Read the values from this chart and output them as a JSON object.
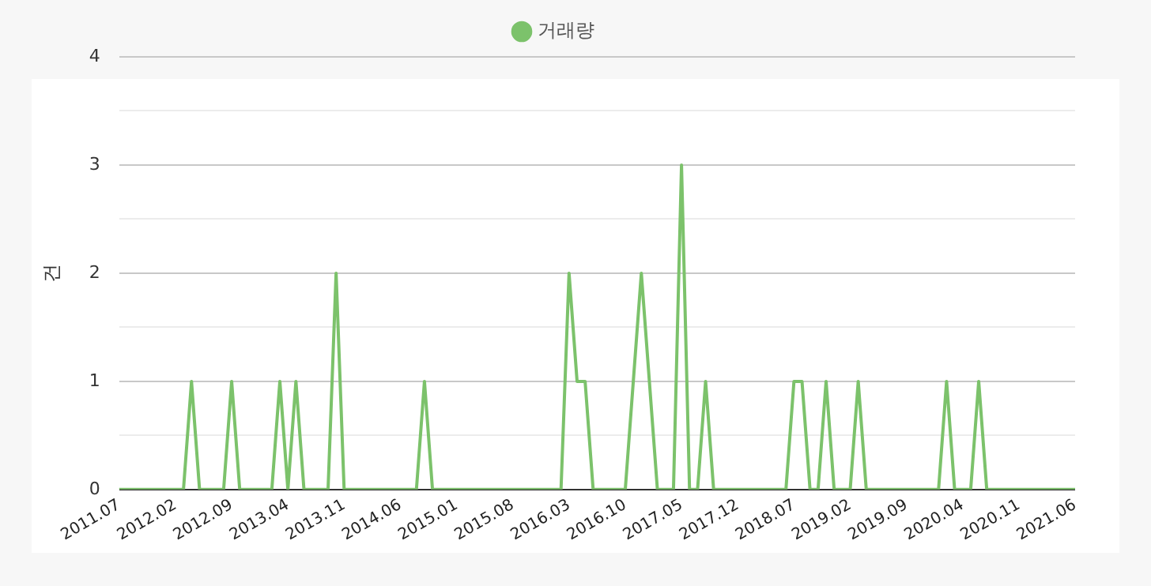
{
  "chart_data": {
    "type": "line",
    "ylabel": "건",
    "legend": "top",
    "grid": "y",
    "marker": "none",
    "line_style": "solid",
    "categories": [
      "2011.07",
      null,
      null,
      null,
      null,
      null,
      null,
      "2012.02",
      null,
      null,
      null,
      null,
      null,
      null,
      "2012.09",
      null,
      null,
      null,
      null,
      null,
      null,
      "2013.04",
      null,
      null,
      null,
      null,
      null,
      null,
      "2013.11",
      null,
      null,
      null,
      null,
      null,
      null,
      "2014.06",
      null,
      null,
      null,
      null,
      null,
      null,
      "2015.01",
      null,
      null,
      null,
      null,
      null,
      null,
      "2015.08",
      null,
      null,
      null,
      null,
      null,
      null,
      "2016.03",
      null,
      null,
      null,
      null,
      null,
      null,
      "2016.10",
      null,
      null,
      null,
      null,
      null,
      null,
      "2017.05",
      null,
      null,
      null,
      null,
      null,
      null,
      "2017.12",
      null,
      null,
      null,
      null,
      null,
      null,
      "2018.07",
      null,
      null,
      null,
      null,
      null,
      null,
      "2019.02",
      null,
      null,
      null,
      null,
      null,
      null,
      "2019.09",
      null,
      null,
      null,
      null,
      null,
      null,
      "2020.04",
      null,
      null,
      null,
      null,
      null,
      null,
      "2020.11",
      null,
      null,
      null,
      null,
      null,
      null,
      "2021.06"
    ],
    "series": [
      {
        "name": "거래량",
        "color": "#7cc26b",
        "values": [
          0,
          0,
          0,
          0,
          0,
          0,
          0,
          0,
          0,
          1,
          0,
          0,
          0,
          0,
          1,
          0,
          0,
          0,
          0,
          0,
          1,
          0,
          1,
          0,
          0,
          0,
          0,
          2,
          0,
          0,
          0,
          0,
          0,
          0,
          0,
          0,
          0,
          0,
          1,
          0,
          0,
          0,
          0,
          0,
          0,
          0,
          0,
          0,
          0,
          0,
          0,
          0,
          0,
          0,
          0,
          0,
          2,
          1,
          1,
          0,
          0,
          0,
          0,
          0,
          1,
          2,
          1,
          0,
          0,
          0,
          3,
          0,
          0,
          1,
          0,
          0,
          0,
          0,
          0,
          0,
          0,
          0,
          0,
          0,
          1,
          1,
          0,
          0,
          1,
          0,
          0,
          0,
          1,
          0,
          0,
          0,
          0,
          0,
          0,
          0,
          0,
          0,
          0,
          1,
          0,
          0,
          0,
          1,
          0,
          0,
          0,
          0,
          0,
          0,
          0,
          0,
          0,
          0,
          0,
          0
        ]
      }
    ],
    "ylim": [
      0,
      4
    ],
    "yticks": [
      0,
      {
        "value": 0.5,
        "label": null
      },
      1,
      {
        "value": 1.5,
        "label": null
      },
      2,
      {
        "value": 2.5,
        "label": null
      },
      3,
      {
        "value": 3.5,
        "label": null
      },
      4
    ]
  }
}
